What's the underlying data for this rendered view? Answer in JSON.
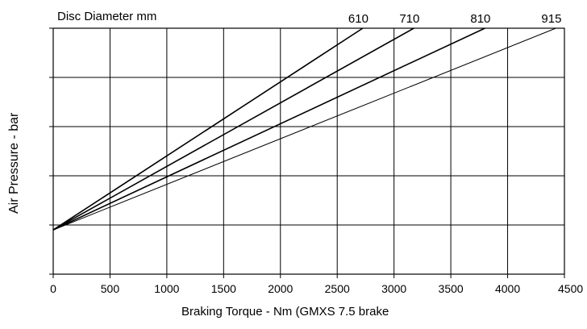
{
  "chart_data": {
    "type": "line",
    "title": "Disc Diameter mm",
    "xlabel": "Braking Torque - Nm  (GMXS 7.5 brake",
    "ylabel": "Air Pressure - bar",
    "xlim": [
      0,
      4500
    ],
    "x_ticks": [
      "0",
      "500",
      "1000",
      "1500",
      "2000",
      "2500",
      "3000",
      "3500",
      "4000",
      "4500"
    ],
    "y_ticks_labeled": false,
    "y_gridlines": 5,
    "grid": true,
    "series": [
      {
        "name": "610",
        "points": [
          [
            0,
            0.9
          ],
          [
            2725,
            5.0
          ]
        ]
      },
      {
        "name": "710",
        "points": [
          [
            0,
            0.9
          ],
          [
            3175,
            5.0
          ]
        ]
      },
      {
        "name": "810",
        "points": [
          [
            0,
            0.9
          ],
          [
            3800,
            5.0
          ]
        ]
      },
      {
        "name": "915",
        "points": [
          [
            0,
            0.9
          ],
          [
            4425,
            5.0
          ]
        ]
      }
    ],
    "ylim": [
      0,
      5
    ]
  }
}
